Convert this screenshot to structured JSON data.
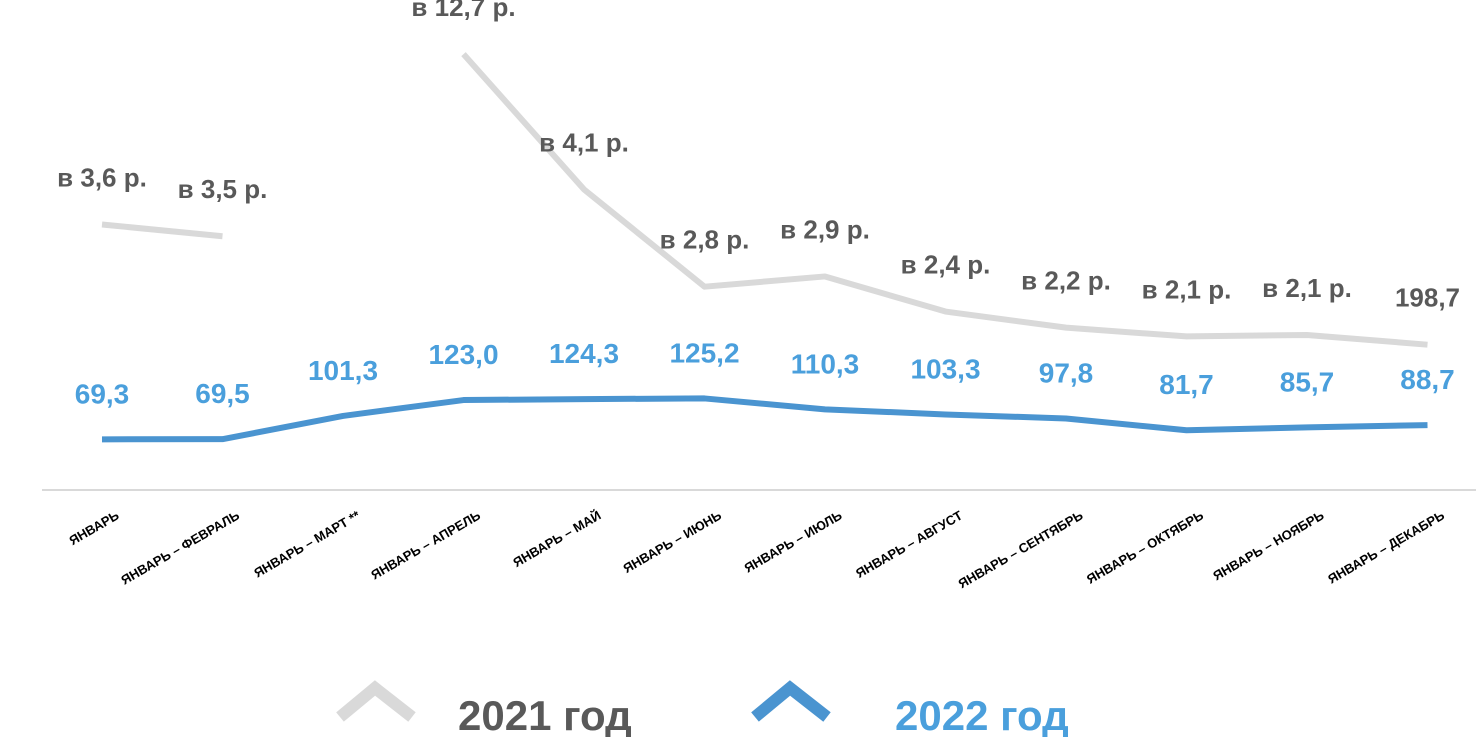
{
  "chart_data": {
    "type": "line",
    "categories": [
      "ЯНВАРЬ",
      "ЯНВАРЬ – ФЕВРАЛЬ",
      "ЯНВАРЬ – МАРТ **",
      "ЯНВАРЬ – АПРЕЛЬ",
      "ЯНВАРЬ – МАЙ",
      "ЯНВАРЬ – ИЮНЬ",
      "ЯНВАРЬ – ИЮЛЬ",
      "ЯНВАРЬ – АВГУСТ",
      "ЯНВАРЬ – СЕНТЯБРЬ",
      "ЯНВАРЬ – ОКТЯБРЬ",
      "ЯНВАРЬ – НОЯБРЬ",
      "ЯНВАРЬ – ДЕКАБРЬ"
    ],
    "series": [
      {
        "name": "2021 год",
        "color": "#d9d9d9",
        "text_color": "#595959",
        "values": [
          363,
          347,
          null,
          596,
          411,
          278,
          292,
          244,
          222,
          210,
          212,
          198.7
        ],
        "annotations": [
          "в 3,6 р.",
          "в 3,5 р.",
          null,
          "в 12,7 р.",
          "в 4,1 р.",
          "в 2,8 р.",
          "в 2,9 р.",
          "в 2,4 р.",
          "в 2,2 р.",
          "в 2,1 р.",
          "в 2,1 р.",
          null
        ],
        "value_labels": [
          null,
          null,
          null,
          null,
          null,
          null,
          null,
          null,
          null,
          null,
          null,
          "198,7"
        ]
      },
      {
        "name": "2022 год",
        "color": "#4a94d0",
        "text_color": "#4a9fdc",
        "values": [
          69.3,
          69.5,
          101.3,
          123.0,
          124.3,
          125.2,
          110.3,
          103.3,
          97.8,
          81.7,
          85.7,
          88.7
        ],
        "value_labels": [
          "69,3",
          "69,5",
          "101,3",
          "123,0",
          "124,3",
          "125,2",
          "110,3",
          "103,3",
          "97,8",
          "81,7",
          "85,7",
          "88,7"
        ]
      }
    ],
    "ylim": [
      0,
      670
    ]
  }
}
